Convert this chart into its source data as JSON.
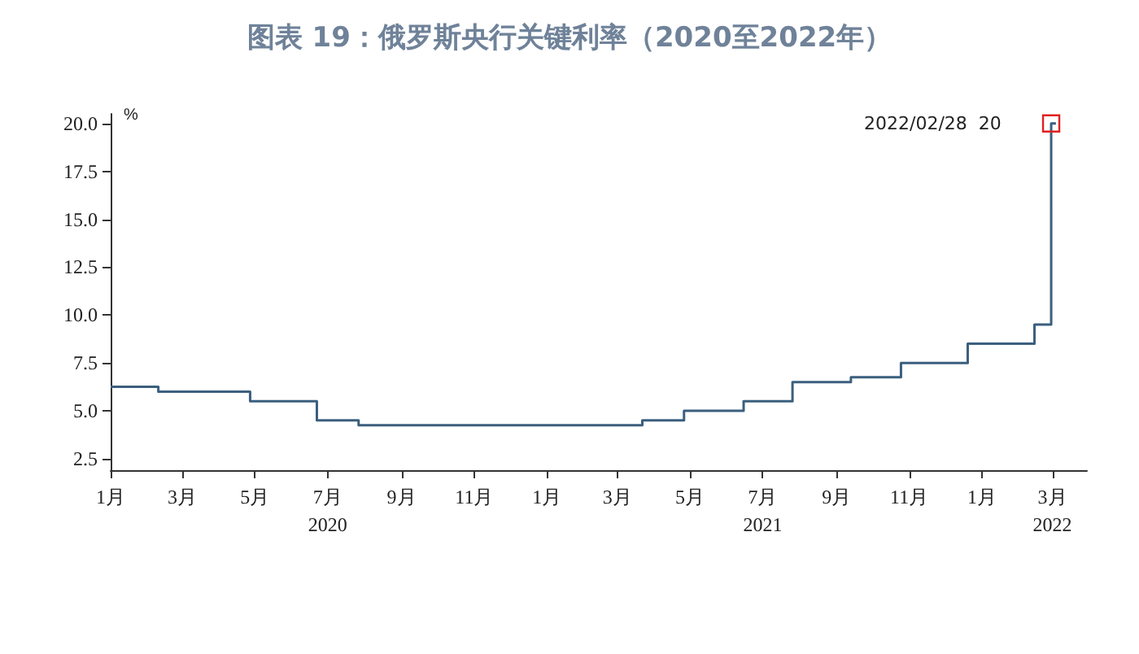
{
  "chart_data": {
    "type": "step",
    "title": "图表 19：俄罗斯央行关键利率（2020至2022年）",
    "ylabel": "%",
    "x": [
      "2020-01-01",
      "2020-02-10",
      "2020-04-27",
      "2020-06-22",
      "2020-07-27",
      "2021-03-22",
      "2021-04-26",
      "2021-06-15",
      "2021-07-26",
      "2021-09-13",
      "2021-10-25",
      "2021-12-20",
      "2022-02-14",
      "2022-02-28",
      "2022-03-04"
    ],
    "series": [
      {
        "color": "#3b5f7e",
        "values": [
          6.25,
          6.0,
          5.5,
          4.5,
          4.25,
          4.5,
          5.0,
          5.5,
          6.5,
          6.75,
          7.5,
          8.5,
          9.5,
          20,
          20
        ]
      }
    ],
    "xlim": [
      "2020-01-01",
      "2022-03-30"
    ],
    "xticks": [
      {
        "value": "2020-01-01",
        "label": "1月"
      },
      {
        "value": "2020-03-01",
        "label": "3月"
      },
      {
        "value": "2020-05-01",
        "label": "5月"
      },
      {
        "value": "2020-07-01",
        "label": "7月\n2020"
      },
      {
        "value": "2020-09-01",
        "label": "9月"
      },
      {
        "value": "2020-11-01",
        "label": "11月"
      },
      {
        "value": "2021-01-01",
        "label": "1月"
      },
      {
        "value": "2021-03-01",
        "label": "3月"
      },
      {
        "value": "2021-05-01",
        "label": "5月"
      },
      {
        "value": "2021-07-01",
        "label": "7月\n2021"
      },
      {
        "value": "2021-09-01",
        "label": "9月"
      },
      {
        "value": "2021-11-01",
        "label": "11月"
      },
      {
        "value": "2022-01-01",
        "label": "1月"
      },
      {
        "value": "2022-03-01",
        "label": "3月\n2022"
      }
    ],
    "ylim": [
      1.9,
      20.5
    ],
    "yticks": [
      {
        "value": 2.5,
        "label": "2.5"
      },
      {
        "value": 5,
        "label": "5.0"
      },
      {
        "value": 7.5,
        "label": "7.5"
      },
      {
        "value": 10,
        "label": "10.0"
      },
      {
        "value": 12.5,
        "label": "12.5"
      },
      {
        "value": 15,
        "label": "15.0"
      },
      {
        "value": 17.5,
        "label": "17.5"
      },
      {
        "value": 20,
        "label": "20.0"
      }
    ],
    "grid": false,
    "marker": "none",
    "line_style": "solid",
    "annotations": [
      {
        "text": "2022/02/28  20",
        "x": "2022-02-28",
        "y": 20
      }
    ]
  }
}
